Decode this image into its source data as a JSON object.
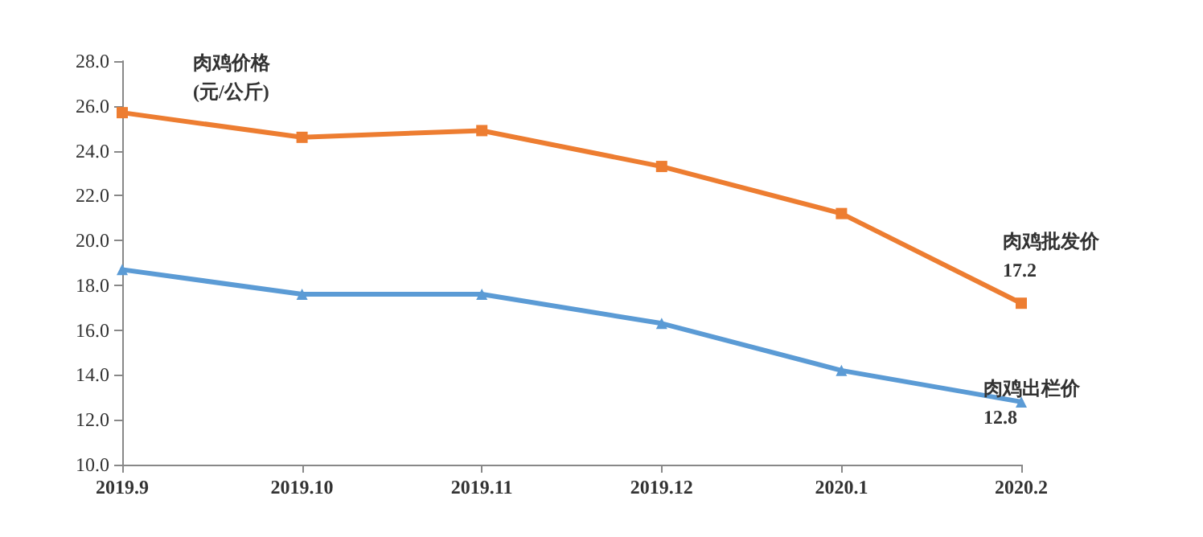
{
  "chart_data": {
    "type": "line",
    "ylabel": "肉鸡价格\n(元/公斤)",
    "categories": [
      "2019.9",
      "2019.10",
      "2019.11",
      "2019.12",
      "2020.1",
      "2020.2"
    ],
    "series": [
      {
        "name": "肉鸡批发价",
        "color": "#ed7d31",
        "marker": "square",
        "values": [
          25.7,
          24.6,
          24.9,
          23.3,
          21.2,
          17.2
        ],
        "value_labels": [
          null,
          null,
          null,
          null,
          null,
          "17.2"
        ]
      },
      {
        "name": "肉鸡出栏价",
        "color": "#5b9bd5",
        "marker": "triangle",
        "values": [
          18.7,
          17.6,
          17.6,
          16.3,
          14.2,
          12.8
        ],
        "value_labels": [
          null,
          null,
          null,
          null,
          null,
          "12.8"
        ]
      }
    ],
    "ylim": [
      10,
      28
    ],
    "yticks": [
      {
        "value": 10,
        "label": "10.0"
      },
      {
        "value": 12,
        "label": "12.0"
      },
      {
        "value": 14,
        "label": "14.0"
      },
      {
        "value": 16,
        "label": "16.0"
      },
      {
        "value": 18,
        "label": "18.0"
      },
      {
        "value": 20,
        "label": "20.0"
      },
      {
        "value": 22,
        "label": "22.0"
      },
      {
        "value": 24,
        "label": "24.0"
      },
      {
        "value": 26,
        "label": "26.0"
      },
      {
        "value": 28,
        "label": "28.0"
      }
    ]
  }
}
